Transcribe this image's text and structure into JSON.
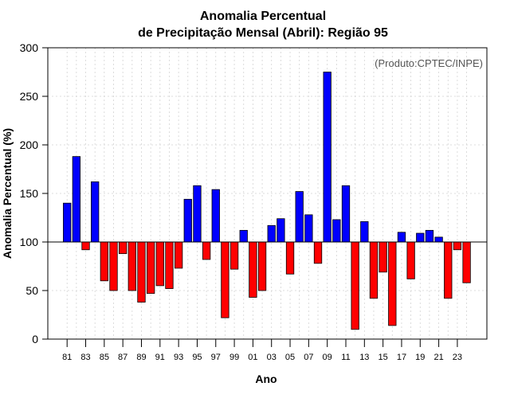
{
  "colors": {
    "positive": "#0000ff",
    "negative": "#ff0000",
    "grid": "#d3d3d3",
    "axis": "#000000",
    "annotation": "#555555"
  },
  "chart_data": {
    "type": "bar",
    "title_line1": "Anomalia Percentual",
    "title_line2": "de Precipitação Mensal (Abril): Região 95",
    "xlabel": "Ano",
    "ylabel": "Anomalia Percentual (%)",
    "annotation": "(Produto:CPTEC/INPE)",
    "ylim": [
      0,
      300
    ],
    "yticks": [
      0,
      50,
      100,
      150,
      200,
      250,
      300
    ],
    "baseline": 100,
    "grid": true,
    "categories": [
      "81",
      "82",
      "83",
      "84",
      "85",
      "86",
      "87",
      "88",
      "89",
      "90",
      "91",
      "92",
      "93",
      "94",
      "95",
      "96",
      "97",
      "98",
      "99",
      "00",
      "01",
      "02",
      "03",
      "04",
      "05",
      "06",
      "07",
      "08",
      "09",
      "10",
      "11",
      "12",
      "13",
      "14",
      "15",
      "16",
      "17",
      "18",
      "19",
      "20",
      "21",
      "22",
      "23",
      "24"
    ],
    "xtick_labels": [
      "81",
      "83",
      "85",
      "87",
      "89",
      "91",
      "93",
      "95",
      "97",
      "99",
      "01",
      "03",
      "05",
      "07",
      "09",
      "11",
      "13",
      "15",
      "17",
      "19",
      "21",
      "23"
    ],
    "values": [
      140,
      188,
      92,
      162,
      60,
      50,
      88,
      50,
      38,
      47,
      55,
      52,
      73,
      144,
      158,
      82,
      154,
      22,
      72,
      112,
      43,
      50,
      117,
      124,
      67,
      152,
      128,
      78,
      275,
      123,
      158,
      10,
      121,
      42,
      69,
      14,
      110,
      62,
      109,
      112,
      105,
      42,
      92,
      58
    ]
  }
}
